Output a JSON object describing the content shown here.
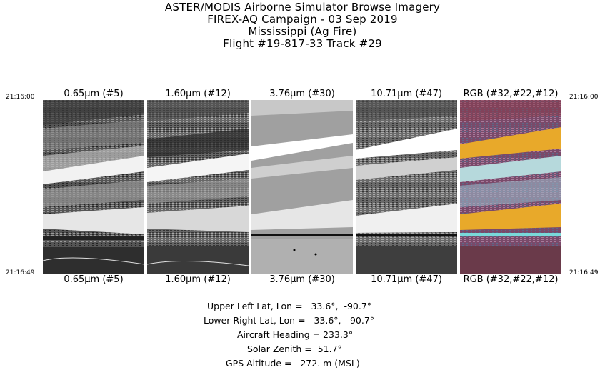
{
  "title": {
    "line1": "ASTER/MODIS Airborne Simulator Browse Imagery",
    "line2": "FIREX-AQ Campaign - 03 Sep 2019",
    "line3": "Mississippi (Ag Fire)",
    "line4": "Flight #19-817-33 Track #29"
  },
  "times": {
    "start": "21:16:00",
    "end": "21:16:49"
  },
  "panels": [
    {
      "label": "0.65µm (#5)",
      "style": "gray-a"
    },
    {
      "label": "1.60µm (#12)",
      "style": "gray-b"
    },
    {
      "label": "3.76µm (#30)",
      "style": "gray-flat"
    },
    {
      "label": "10.71µm (#47)",
      "style": "gray-c"
    },
    {
      "label": "RGB (#32,#22,#12)",
      "style": "rgb"
    }
  ],
  "info": {
    "upper_left": "Upper Left Lat, Lon =   33.6°,  -90.7°",
    "lower_right": "Lower Right Lat, Lon =   33.6°,  -90.7°",
    "heading": "Aircraft Heading = 233.3°",
    "solar_zenith": "Solar Zenith =  51.7°",
    "gps_altitude": "GPS Altitude =   272. m (MSL)"
  },
  "colors": {
    "rgb_purple": "#7a4a6a",
    "rgb_yellow": "#e8a92a",
    "rgb_cyan": "#b6d9dc",
    "gray_flat": "#a0a0a0"
  }
}
